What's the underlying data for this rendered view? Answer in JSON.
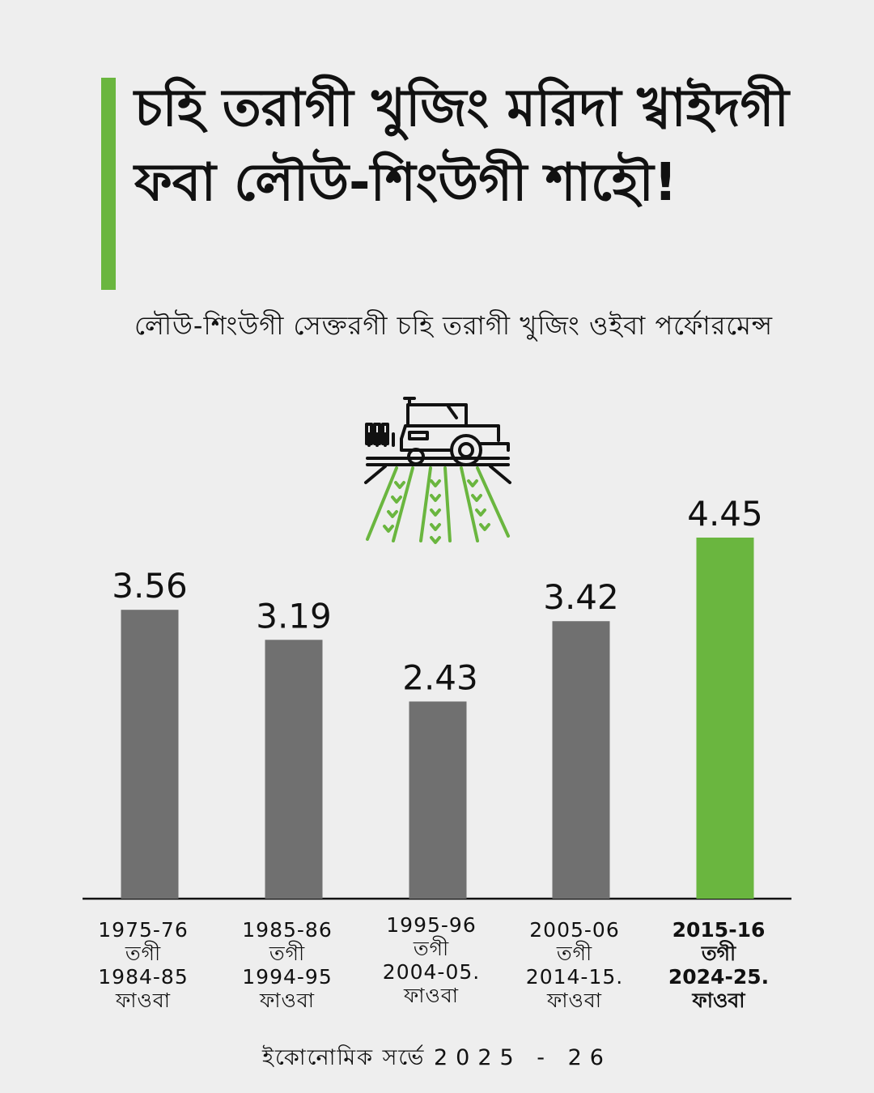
{
  "header": {
    "title": "চহি তরাগী খুজিং মরিদা খ্বাইদগী ফবা লৌউ-শিংউগী শাহৌ!",
    "subtitle": "লৌউ-শিংউগী সেক্তরগী চহি তরাগী খুজিং ওইবা পর্ফোরমেন্স"
  },
  "icon": "tractor-field-icon",
  "colors": {
    "accent": "#6ab63f",
    "bar": "#707070",
    "background": "#eeeeee"
  },
  "chart_data": {
    "type": "bar",
    "categories": [
      [
        "1975-76",
        "তগী",
        "1984-85",
        "ফাওবা"
      ],
      [
        "1985-86",
        "তগী",
        "1994-95",
        "ফাওবা"
      ],
      [
        "1995-96",
        "তগী",
        "2004-05.",
        "ফাওবা"
      ],
      [
        "2005-06",
        "তগী",
        "2014-15.",
        "ফাওবা"
      ],
      [
        "2015-16",
        "তগী",
        "2024-25.",
        "ফাওবা"
      ]
    ],
    "values": [
      3.56,
      3.19,
      2.43,
      3.42,
      4.45
    ],
    "value_labels": [
      "3.56",
      "3.19",
      "2.43",
      "3.42",
      "4.45"
    ],
    "highlight_index": 4,
    "ylim": [
      0,
      4.45
    ],
    "grid": false,
    "legend": "none"
  },
  "source": {
    "text": "ইকোনোমিক সর্ভে",
    "year": "2025 - 26"
  }
}
